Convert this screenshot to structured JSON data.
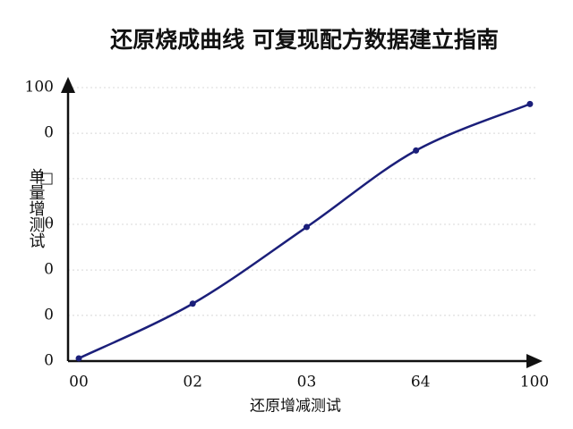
{
  "chart_data": {
    "type": "line",
    "title": "还原烧成曲线 可复现配方数据建立指南",
    "x_label": "还原增减测试",
    "y_label": "单量增测试",
    "x": [
      0,
      25,
      50,
      74,
      99
    ],
    "series": [
      {
        "color": "#1b1f7a",
        "values": [
          1,
          21,
          49,
          77,
          94
        ]
      }
    ],
    "smooth": true,
    "markers": true,
    "xlim": [
      0,
      100
    ],
    "xticks": [
      {
        "value": 0,
        "label": "00"
      },
      {
        "value": 25,
        "label": "02"
      },
      {
        "value": 50,
        "label": "03"
      },
      {
        "value": 75,
        "label": "64"
      },
      100
    ],
    "ylim": [
      0,
      100
    ],
    "yticks": [
      {
        "value": 0,
        "label": "0"
      },
      {
        "value": 16.7,
        "label": "0"
      },
      {
        "value": 33.3,
        "label": "0"
      },
      {
        "value": 50,
        "label": "θ"
      },
      {
        "value": 66.7,
        "label": "□"
      },
      {
        "value": 83.3,
        "label": "0"
      },
      100
    ],
    "grid": true
  }
}
